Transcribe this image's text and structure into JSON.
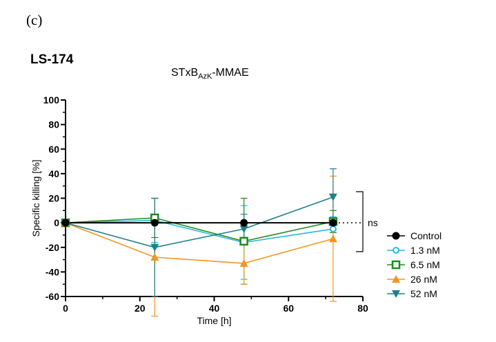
{
  "panel_label": "(c)",
  "cell_line": "LS-174",
  "title_parts": {
    "main": "STxB",
    "sub": "AzK",
    "tail": "-MMAE"
  },
  "annotation": "ns",
  "colors": {
    "Control": "#000000",
    "1.3 nM": "#29b6e8",
    "6.5 nM": "#1e8a1e",
    "26 nM": "#f7941d",
    "52 nM": "#1f7f8c"
  },
  "chart_data": {
    "type": "line",
    "title": "STxBAzK-MMAE",
    "xlabel": "Time [h]",
    "ylabel": "Specific killing [%]",
    "xlim": [
      0,
      80
    ],
    "ylim": [
      -60,
      100
    ],
    "xticks": [
      0,
      20,
      40,
      60,
      80
    ],
    "yticks": [
      -60,
      -40,
      -20,
      0,
      20,
      40,
      60,
      80,
      100
    ],
    "legend_position": "right",
    "series": [
      {
        "name": "Control",
        "marker": "circle-filled",
        "x": [
          0,
          24,
          48,
          72
        ],
        "y": [
          0,
          0,
          0,
          0
        ],
        "err": [
          0,
          0,
          0,
          0
        ]
      },
      {
        "name": "1.3 nM",
        "marker": "circle-open",
        "x": [
          0,
          24,
          48,
          72
        ],
        "y": [
          0,
          2,
          -16,
          -5
        ],
        "err": [
          0,
          18,
          30,
          10
        ]
      },
      {
        "name": "6.5 nM",
        "marker": "square-open",
        "x": [
          0,
          24,
          48,
          72
        ],
        "y": [
          0,
          4,
          -15,
          1
        ],
        "err": [
          0,
          16,
          35,
          9
        ]
      },
      {
        "name": "26 nM",
        "marker": "triangle-up",
        "x": [
          0,
          24,
          48,
          72
        ],
        "y": [
          0,
          -28,
          -33,
          -13
        ],
        "err": [
          0,
          48,
          17,
          51
        ]
      },
      {
        "name": "52 nM",
        "marker": "triangle-down",
        "x": [
          0,
          24,
          48,
          72
        ],
        "y": [
          0,
          -20,
          -5,
          21
        ],
        "err": [
          0,
          40,
          12,
          23
        ]
      }
    ]
  }
}
